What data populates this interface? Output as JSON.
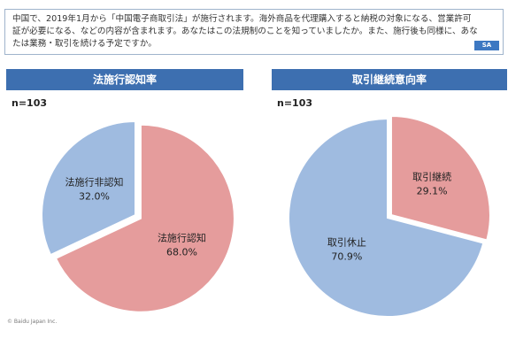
{
  "question": {
    "text": "中国で、2019年1月から「中国電子商取引法」が施行されます。海外商品を代理購入すると納税の対象になる、営業許可証が必要になる、などの内容が含まれます。あなたはこの法規制のことを知っていましたか。また、施行後も同様に、あなたは業務・取引を続ける予定ですか。",
    "badge": "SA"
  },
  "copyright": "© Baidu Japan Inc.",
  "chart_data": [
    {
      "type": "pie",
      "title": "法施行認知率",
      "sample": "n=103",
      "slices": [
        {
          "label": "法施行認知",
          "value": 68.0,
          "value_text": "68.0%",
          "color": "#e59c9c"
        },
        {
          "label": "法施行非認知",
          "value": 32.0,
          "value_text": "32.0%",
          "color": "#9fbbe0"
        }
      ]
    },
    {
      "type": "pie",
      "title": "取引継続意向率",
      "sample": "n=103",
      "slices": [
        {
          "label": "取引継続",
          "value": 29.1,
          "value_text": "29.1%",
          "color": "#e59c9c"
        },
        {
          "label": "取引休止",
          "value": 70.9,
          "value_text": "70.9%",
          "color": "#9fbbe0"
        }
      ]
    }
  ]
}
